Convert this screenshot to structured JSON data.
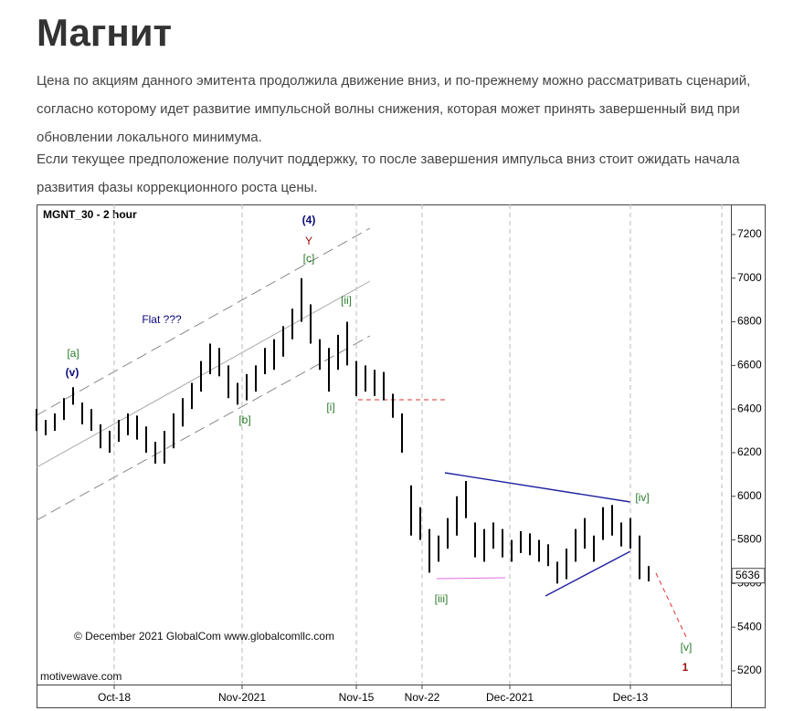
{
  "header": {
    "title": "Магнит"
  },
  "paragraphs": [
    "Цена по акциям данного эмитента продолжила движение вниз, и по-прежнему можно рассматривать сценарий, согласно которому идет развитие импульсной волны снижения, которая может принять завершенный вид при обновлении локального минимума.",
    "Если текущее предположение получит поддержку, то после завершения импульса вниз стоит ожидать начала развития фазы коррекционного роста цены."
  ],
  "chart_data": {
    "type": "ohlc",
    "title": "MGNT_30 - 2 hour",
    "x": [
      0,
      1,
      2,
      3,
      4,
      5,
      6,
      7,
      8,
      9,
      10,
      11,
      12,
      13,
      14,
      15,
      16,
      17,
      18,
      19,
      20,
      21,
      22,
      23,
      24,
      25,
      26,
      27,
      28,
      29,
      30,
      31,
      32,
      33,
      34,
      35,
      36,
      37,
      38,
      39,
      40,
      41,
      42,
      43,
      44,
      45,
      46,
      47,
      48,
      49,
      50,
      51,
      52,
      53,
      54,
      55,
      56,
      57,
      58,
      59,
      60,
      61,
      62,
      63,
      64,
      65,
      66,
      67
    ],
    "high": [
      6400,
      6350,
      6380,
      6450,
      6500,
      6430,
      6400,
      6330,
      6300,
      6350,
      6380,
      6370,
      6320,
      6250,
      6300,
      6380,
      6450,
      6520,
      6620,
      6700,
      6680,
      6600,
      6520,
      6560,
      6600,
      6680,
      6720,
      6780,
      6860,
      7000,
      6880,
      6720,
      6680,
      6740,
      6800,
      6620,
      6600,
      6580,
      6570,
      6470,
      6380,
      6050,
      5950,
      5850,
      5820,
      5900,
      6000,
      6070,
      5880,
      5850,
      5880,
      5850,
      5800,
      5840,
      5830,
      5800,
      5780,
      5700,
      5760,
      5850,
      5900,
      5820,
      5950,
      5960,
      5880,
      5900,
      5820,
      5680
    ],
    "low": [
      6300,
      6280,
      6300,
      6350,
      6420,
      6330,
      6300,
      6220,
      6200,
      6250,
      6280,
      6260,
      6200,
      6150,
      6150,
      6220,
      6320,
      6400,
      6480,
      6560,
      6550,
      6450,
      6420,
      6440,
      6480,
      6560,
      6580,
      6640,
      6720,
      6800,
      6700,
      6580,
      6480,
      6580,
      6600,
      6460,
      6480,
      6460,
      6440,
      6360,
      6200,
      5820,
      5800,
      5650,
      5700,
      5760,
      5820,
      5900,
      5720,
      5700,
      5760,
      5720,
      5700,
      5740,
      5730,
      5700,
      5680,
      5600,
      5620,
      5700,
      5760,
      5700,
      5800,
      5820,
      5770,
      5760,
      5620,
      5610
    ],
    "color": "#000000",
    "xlim": [
      0,
      76
    ],
    "xticks": [
      {
        "value": 8.5,
        "label": "Oct-18"
      },
      {
        "value": 22.5,
        "label": "Nov-2021"
      },
      {
        "value": 35,
        "label": "Nov-15"
      },
      {
        "value": 42.2,
        "label": "Nov-22"
      },
      {
        "value": 51.8,
        "label": "Dec-2021"
      },
      {
        "value": 65,
        "label": "Dec-13"
      }
    ],
    "ylim": [
      5137,
      7338
    ],
    "yticks": [
      5200,
      5400,
      5600,
      5800,
      6000,
      6200,
      6400,
      6600,
      6800,
      7000,
      7200
    ],
    "last_value": 5636,
    "annotations": [
      {
        "text": "(4)",
        "color": "#0a0a7a"
      },
      {
        "text": "Y",
        "color": "#a01010"
      },
      {
        "text": "[c]",
        "color": "#2a7a2a"
      },
      {
        "text": "[ii]",
        "color": "#2a7a2a"
      },
      {
        "text": "Flat ???",
        "color": "#0a0a7a"
      },
      {
        "text": "[a]",
        "color": "#2a7a2a"
      },
      {
        "text": "(v)",
        "color": "#0a0a7a"
      },
      {
        "text": "[b]",
        "color": "#2a7a2a"
      },
      {
        "text": "[i]",
        "color": "#2a7a2a"
      },
      {
        "text": "[iv]",
        "color": "#2a7a2a"
      },
      {
        "text": "[iii]",
        "color": "#2a7a2a"
      },
      {
        "text": "[v]",
        "color": "#2a7a2a"
      },
      {
        "text": "1",
        "color": "#a01010"
      },
      {
        "text": "© December 2021 GlobalCom www.globalcomllc.com",
        "color": "#111111"
      },
      {
        "text": "motivewave.com",
        "color": "#111111"
      }
    ]
  }
}
